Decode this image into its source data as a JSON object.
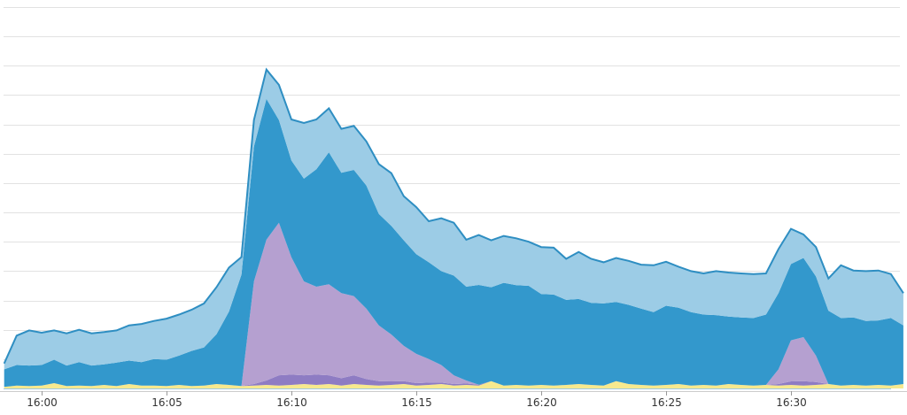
{
  "chart_data": {
    "type": "area",
    "stacked": true,
    "grid": true,
    "ylim": [
      0,
      13
    ],
    "yticks": [
      0,
      1,
      2,
      3,
      4,
      5,
      6,
      7,
      8,
      9,
      10,
      11,
      12,
      13
    ],
    "x_tick_labels": [
      "16:00",
      "16:05",
      "16:10",
      "16:15",
      "16:20",
      "16:25",
      "16:30"
    ],
    "x_tick_minutes": [
      0,
      5,
      10,
      15,
      20,
      25,
      30
    ],
    "x_minutes": [
      -1.5,
      -1,
      -0.5,
      0,
      0.5,
      1,
      1.5,
      2,
      2.5,
      3,
      3.5,
      4,
      4.5,
      5,
      5.5,
      6,
      6.5,
      7,
      7.5,
      8,
      8.5,
      9,
      9.5,
      10,
      10.5,
      11,
      11.5,
      12,
      12.5,
      13,
      13.5,
      14,
      14.5,
      15,
      15.5,
      16,
      16.5,
      17,
      17.5,
      18,
      18.5,
      19,
      19.5,
      20,
      20.5,
      21,
      21.5,
      22,
      22.5,
      23,
      23.5,
      24,
      24.5,
      25,
      25.5,
      26,
      26.5,
      27,
      27.5,
      28,
      28.5,
      29,
      29.5,
      30,
      30.5,
      31,
      31.5,
      32,
      32.5,
      33,
      33.5,
      34,
      34.5
    ],
    "series": [
      {
        "color": "#f7e98e",
        "values": [
          0.05,
          0.1,
          0.08,
          0.1,
          0.18,
          0.08,
          0.1,
          0.08,
          0.12,
          0.08,
          0.15,
          0.1,
          0.1,
          0.08,
          0.12,
          0.08,
          0.1,
          0.15,
          0.12,
          0.08,
          0.1,
          0.12,
          0.1,
          0.12,
          0.15,
          0.12,
          0.15,
          0.1,
          0.15,
          0.12,
          0.1,
          0.12,
          0.15,
          0.1,
          0.12,
          0.15,
          0.1,
          0.12,
          0.1,
          0.25,
          0.1,
          0.12,
          0.1,
          0.12,
          0.1,
          0.12,
          0.15,
          0.12,
          0.1,
          0.25,
          0.15,
          0.12,
          0.1,
          0.12,
          0.15,
          0.1,
          0.12,
          0.1,
          0.15,
          0.12,
          0.1,
          0.12,
          0.1,
          0.12,
          0.1,
          0.12,
          0.15,
          0.1,
          0.12,
          0.1,
          0.12,
          0.1,
          0.15
        ]
      },
      {
        "color": "#8e7cc3",
        "values": [
          0,
          0,
          0,
          0,
          0,
          0,
          0,
          0,
          0,
          0,
          0,
          0,
          0,
          0,
          0,
          0,
          0,
          0,
          0,
          0,
          0.05,
          0.15,
          0.35,
          0.35,
          0.3,
          0.35,
          0.3,
          0.25,
          0.3,
          0.2,
          0.15,
          0.12,
          0.1,
          0.08,
          0.08,
          0.05,
          0.05,
          0.05,
          0.03,
          0,
          0,
          0,
          0,
          0,
          0,
          0,
          0,
          0,
          0,
          0,
          0,
          0,
          0,
          0,
          0,
          0,
          0,
          0,
          0,
          0,
          0,
          0,
          0.05,
          0.12,
          0.15,
          0.1,
          0,
          0,
          0,
          0,
          0,
          0,
          0
        ]
      },
      {
        "color": "#b5a0d0",
        "values": [
          0,
          0,
          0,
          0,
          0,
          0,
          0,
          0,
          0,
          0,
          0,
          0,
          0,
          0,
          0,
          0,
          0,
          0,
          0,
          0,
          3.5,
          4.8,
          5.2,
          4.0,
          3.2,
          3.0,
          3.1,
          2.9,
          2.7,
          2.4,
          1.9,
          1.6,
          1.2,
          1.0,
          0.8,
          0.6,
          0.3,
          0.1,
          0,
          0,
          0,
          0,
          0,
          0,
          0,
          0,
          0,
          0,
          0,
          0,
          0,
          0,
          0,
          0,
          0,
          0,
          0,
          0,
          0,
          0,
          0,
          0,
          0.5,
          1.4,
          1.5,
          0.9,
          0,
          0,
          0,
          0,
          0,
          0,
          0
        ]
      },
      {
        "color": "#3398cc",
        "values": [
          0.6,
          0.7,
          0.7,
          0.7,
          0.8,
          0.7,
          0.8,
          0.7,
          0.7,
          0.8,
          0.8,
          0.8,
          0.9,
          0.9,
          1.0,
          1.2,
          1.3,
          1.7,
          2.5,
          3.8,
          4.6,
          4.8,
          3.5,
          3.3,
          3.5,
          4.0,
          4.5,
          4.1,
          4.3,
          4.2,
          3.8,
          3.7,
          3.6,
          3.4,
          3.3,
          3.2,
          3.4,
          3.2,
          3.4,
          3.2,
          3.5,
          3.4,
          3.4,
          3.1,
          3.1,
          2.9,
          2.9,
          2.8,
          2.8,
          2.7,
          2.7,
          2.6,
          2.5,
          2.7,
          2.6,
          2.5,
          2.4,
          2.4,
          2.3,
          2.3,
          2.3,
          2.4,
          2.6,
          2.6,
          2.7,
          2.7,
          2.5,
          2.3,
          2.3,
          2.2,
          2.2,
          2.3,
          2.0
        ]
      },
      {
        "color": "#9ccce6",
        "values": [
          0.2,
          1.0,
          1.2,
          1.1,
          1.0,
          1.1,
          1.1,
          1.1,
          1.1,
          1.1,
          1.2,
          1.3,
          1.3,
          1.4,
          1.4,
          1.4,
          1.5,
          1.6,
          1.5,
          0.6,
          0.9,
          1.0,
          1.2,
          1.4,
          1.9,
          1.7,
          1.5,
          1.5,
          1.5,
          1.5,
          1.7,
          1.8,
          1.5,
          1.6,
          1.4,
          1.8,
          1.8,
          1.6,
          1.7,
          1.6,
          1.6,
          1.6,
          1.5,
          1.6,
          1.6,
          1.4,
          1.6,
          1.5,
          1.4,
          1.5,
          1.5,
          1.5,
          1.6,
          1.5,
          1.4,
          1.4,
          1.4,
          1.5,
          1.5,
          1.5,
          1.5,
          1.4,
          1.5,
          1.2,
          0.8,
          1.0,
          1.1,
          1.8,
          1.6,
          1.7,
          1.7,
          1.5,
          1.1
        ]
      }
    ],
    "outline_color": "#2e8ec2",
    "plot_bottom_color": "#9ec9e2"
  }
}
